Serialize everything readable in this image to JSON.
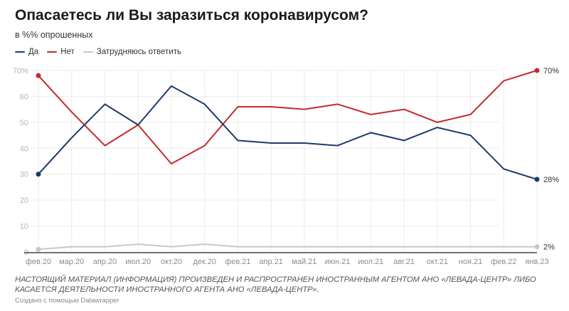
{
  "header": {
    "title": "Опасаетесь ли Вы заразиться коронавирусом?",
    "subtitle": "в %% опрошенных"
  },
  "legend": [
    {
      "label": "Да",
      "color": "#1d3a6b"
    },
    {
      "label": "Нет",
      "color": "#c7282e"
    },
    {
      "label": "Затрудняюсь ответить",
      "color": "#c8c8c8"
    }
  ],
  "chart_data": {
    "type": "line",
    "title": "Опасаетесь ли Вы заразиться коронавирусом?",
    "subtitle": "в %% опрошенных",
    "xlabel": "",
    "ylabel": "",
    "categories": [
      "фев.20",
      "мар.20",
      "апр.20",
      "июл.20",
      "окт.20",
      "дек.20",
      "фев.21",
      "апр.21",
      "май.21",
      "июн.21",
      "июл.21",
      "авг.21",
      "окт.21",
      "ноя.21",
      "фев.22",
      "янв.23"
    ],
    "ylim": [
      0,
      70
    ],
    "yticks": [
      {
        "value": 0,
        "label": "0"
      },
      {
        "value": 10,
        "label": "10"
      },
      {
        "value": 20,
        "label": "20"
      },
      {
        "value": 30,
        "label": "30"
      },
      {
        "value": 40,
        "label": "40"
      },
      {
        "value": 50,
        "label": "50"
      },
      {
        "value": 60,
        "label": "60"
      },
      {
        "value": 70,
        "label": "70%"
      }
    ],
    "grid": true,
    "legend_position": "top-left",
    "series": [
      {
        "name": "Да",
        "color": "#1d3a6b",
        "values": [
          30,
          44,
          57,
          49,
          64,
          57,
          43,
          42,
          42,
          41,
          46,
          43,
          48,
          45,
          32,
          28
        ],
        "end_label": "28%"
      },
      {
        "name": "Нет",
        "color": "#c7282e",
        "values": [
          68,
          54,
          41,
          49,
          34,
          41,
          56,
          56,
          55,
          57,
          53,
          55,
          50,
          53,
          66,
          70
        ],
        "end_label": "70%"
      },
      {
        "name": "Затрудняюсь ответить",
        "color": "#c8c8c8",
        "values": [
          1,
          2,
          2,
          3,
          2,
          3,
          2,
          2,
          2,
          2,
          2,
          2,
          2,
          2,
          2,
          2
        ],
        "end_label": "2%"
      }
    ]
  },
  "footer": {
    "notes": "НАСТОЯЩИЙ МАТЕРИАЛ (ИНФОРМАЦИЯ) ПРОИЗВЕДЕН И РАСПРОСТРАНЕН ИНОСТРАННЫМ АГЕНТОМ АНО «ЛЕВАДА-ЦЕНТР» ЛИБО КАСАЕТСЯ ДЕЯТЕЛЬНОСТИ ИНОСТРАННОГО АГЕНТА АНО «ЛЕВАДА-ЦЕНТР».",
    "byline": "Создано с помощью Datawrapper"
  }
}
